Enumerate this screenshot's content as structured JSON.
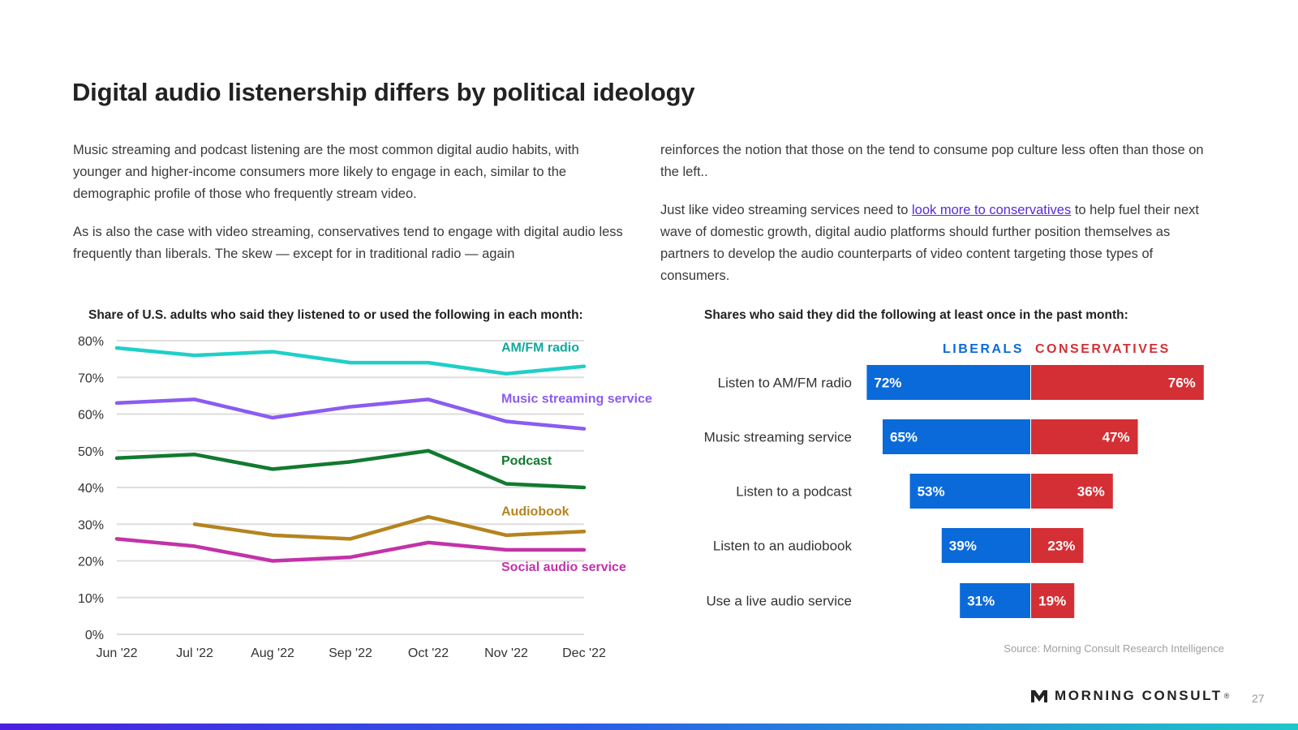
{
  "page": {
    "title": "Digital audio listenership differs by political ideology",
    "paragraphs": {
      "p1": "Music streaming and podcast listening are the most common digital audio habits, with younger and higher-income consumers more likely to engage in each, similar to the demographic profile of those who frequently stream video.",
      "p2": "As is also the case with video streaming, conservatives tend to engage with digital audio less frequently than liberals. The skew — except for in traditional radio — again",
      "p3": "reinforces the notion that those on the tend to consume pop culture less often than those on the left..",
      "p4_before": "Just like video streaming services need to ",
      "p4_link": "look more to conservatives",
      "p4_after": " to help fuel their next wave of domestic growth, digital audio platforms should further position themselves as partners to develop the audio counterparts of video content targeting those types of consumers."
    },
    "source": "Source: Morning Consult Research Intelligence",
    "logo_text": "MORNING CONSULT",
    "logo_mark": "®",
    "page_number": "27"
  },
  "colors": {
    "liberal": "#0a6ad9",
    "conservative": "#d42f35",
    "gridline": "#dddddd",
    "bottom_bar_start": "#4b1fe0",
    "bottom_bar_end": "#1fc7c9"
  },
  "chart_data": [
    {
      "type": "line",
      "title": "Share of U.S. adults who said they listened to or used the following in each month:",
      "x": [
        "Jun '22",
        "Jul '22",
        "Aug '22",
        "Sep '22",
        "Oct '22",
        "Nov '22",
        "Dec '22"
      ],
      "ylim": [
        0,
        80
      ],
      "yticks": [
        "0%",
        "10%",
        "20%",
        "30%",
        "40%",
        "50%",
        "60%",
        "70%",
        "80%"
      ],
      "grid": true,
      "series": [
        {
          "name": "AM/FM radio",
          "color": "#20cfc8",
          "label_color": "#13a89e",
          "values": [
            78,
            76,
            77,
            74,
            74,
            71,
            73
          ]
        },
        {
          "name": "Music streaming service",
          "color": "#8a5cf0",
          "label_color": "#8a5cf0",
          "values": [
            63,
            64,
            59,
            62,
            64,
            58,
            56
          ]
        },
        {
          "name": "Podcast",
          "color": "#117a2f",
          "label_color": "#117a2f",
          "values": [
            48,
            49,
            45,
            47,
            50,
            41,
            40
          ]
        },
        {
          "name": "Audiobook",
          "color": "#b5841f",
          "label_color": "#b5841f",
          "values": [
            null,
            30,
            27,
            26,
            32,
            27,
            28
          ]
        },
        {
          "name": "Social audio service",
          "color": "#c332a8",
          "label_color": "#c332a8",
          "values": [
            26,
            24,
            20,
            21,
            25,
            23,
            23
          ]
        }
      ]
    },
    {
      "type": "bar",
      "title": "Shares who said they did the following at least once in the past month:",
      "categories": [
        "Listen to AM/FM radio",
        "Music streaming service",
        "Listen to a podcast",
        "Listen to an audiobook",
        "Use a live audio service"
      ],
      "series": [
        {
          "name": "LIBERALS",
          "values": [
            72,
            65,
            53,
            39,
            31
          ]
        },
        {
          "name": "CONSERVATIVES",
          "values": [
            76,
            47,
            36,
            23,
            19
          ]
        }
      ],
      "value_labels": {
        "LIBERALS": [
          "72%",
          "65%",
          "53%",
          "39%",
          "31%"
        ],
        "CONSERVATIVES": [
          "76%",
          "47%",
          "36%",
          "23%",
          "19%"
        ]
      }
    }
  ]
}
